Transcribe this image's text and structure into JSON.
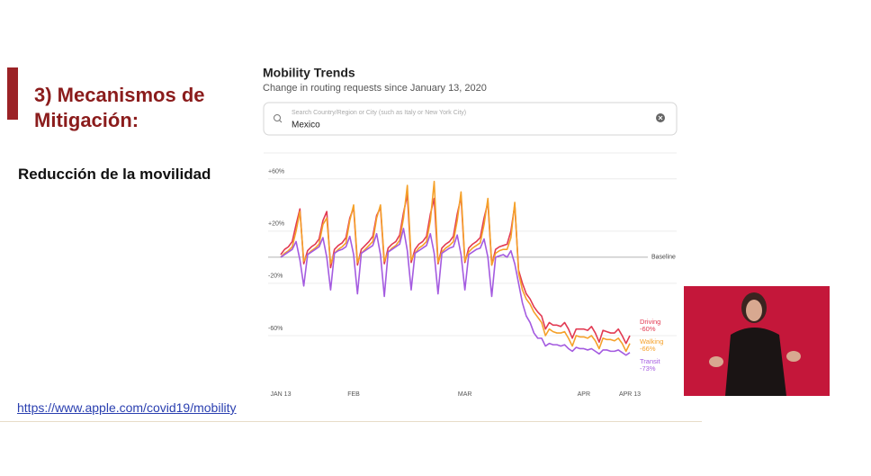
{
  "slide": {
    "heading": "3) Mecanismos de Mitigación:",
    "subheading": "Reducción de la movilidad",
    "link": "https://www.apple.com/covid19/mobility"
  },
  "panel": {
    "title": "Mobility Trends",
    "subtitle": "Change in routing requests since January 13, 2020",
    "search_placeholder": "Search Country/Region or City (such as Italy or New York City)",
    "search_value": "Mexico"
  },
  "chart_data": {
    "type": "line",
    "categories": [
      "JAN 13",
      null,
      null,
      null,
      null,
      null,
      null,
      null,
      null,
      null,
      null,
      null,
      null,
      null,
      null,
      null,
      null,
      null,
      null,
      "FEB",
      null,
      null,
      null,
      null,
      null,
      null,
      null,
      null,
      null,
      null,
      null,
      null,
      null,
      null,
      null,
      null,
      null,
      null,
      null,
      null,
      null,
      null,
      null,
      null,
      null,
      null,
      null,
      null,
      "MAR",
      null,
      null,
      null,
      null,
      null,
      null,
      null,
      null,
      null,
      null,
      null,
      null,
      null,
      null,
      null,
      null,
      null,
      null,
      null,
      null,
      null,
      null,
      null,
      null,
      null,
      null,
      null,
      null,
      null,
      null,
      "APR",
      null,
      null,
      null,
      null,
      null,
      null,
      null,
      null,
      null,
      null,
      null,
      "APR 13"
    ],
    "series": [
      {
        "name": "Driving",
        "color": "#e23a52",
        "values": [
          2,
          6,
          8,
          12,
          25,
          37,
          -5,
          5,
          8,
          10,
          14,
          28,
          35,
          -8,
          6,
          9,
          11,
          15,
          30,
          38,
          -6,
          6,
          9,
          12,
          16,
          32,
          38,
          -5,
          7,
          10,
          12,
          17,
          34,
          48,
          -4,
          6,
          10,
          12,
          16,
          33,
          45,
          -5,
          7,
          10,
          12,
          16,
          33,
          46,
          -4,
          7,
          10,
          12,
          15,
          30,
          42,
          -6,
          6,
          8,
          9,
          10,
          20,
          40,
          -10,
          -20,
          -28,
          -32,
          -38,
          -42,
          -45,
          -55,
          -50,
          -52,
          -52,
          -53,
          -50,
          -55,
          -62,
          -55,
          -55,
          -55,
          -56,
          -53,
          -58,
          -65,
          -56,
          -57,
          -58,
          -58,
          -55,
          -60,
          -66,
          -60
        ],
        "value_labels": [
          null,
          null,
          null,
          null,
          null,
          null,
          null,
          null,
          null,
          null,
          null,
          null,
          null,
          null,
          null,
          null,
          null,
          null,
          null,
          null,
          null,
          null,
          null,
          null,
          null,
          null,
          null,
          null,
          null,
          null,
          null,
          null,
          null,
          null,
          null,
          null,
          null,
          null,
          null,
          null,
          null,
          null,
          null,
          null,
          null,
          null,
          null,
          null,
          null,
          null,
          null,
          null,
          null,
          null,
          null,
          null,
          null,
          null,
          null,
          null,
          null,
          null,
          null,
          null,
          null,
          null,
          null,
          null,
          null,
          null,
          null,
          null,
          null,
          null,
          null,
          null,
          null,
          null,
          null,
          null,
          null,
          null,
          null,
          null,
          null,
          null,
          null,
          null,
          null,
          null,
          null,
          "-60%"
        ]
      },
      {
        "name": "Walking",
        "color": "#f5a12a",
        "values": [
          0,
          3,
          5,
          8,
          20,
          35,
          -3,
          2,
          5,
          7,
          10,
          25,
          30,
          -5,
          3,
          6,
          8,
          11,
          28,
          40,
          -4,
          3,
          6,
          9,
          12,
          30,
          40,
          -3,
          4,
          7,
          9,
          13,
          30,
          55,
          -2,
          3,
          7,
          9,
          12,
          28,
          58,
          -4,
          4,
          7,
          9,
          12,
          28,
          50,
          -3,
          4,
          7,
          9,
          11,
          25,
          45,
          -6,
          3,
          5,
          6,
          6,
          15,
          42,
          -12,
          -25,
          -32,
          -36,
          -42,
          -46,
          -50,
          -60,
          -55,
          -57,
          -58,
          -58,
          -57,
          -62,
          -68,
          -60,
          -61,
          -61,
          -62,
          -60,
          -64,
          -70,
          -62,
          -63,
          -63,
          -64,
          -62,
          -66,
          -72,
          -66
        ],
        "value_labels": [
          null,
          null,
          null,
          null,
          null,
          null,
          null,
          null,
          null,
          null,
          null,
          null,
          null,
          null,
          null,
          null,
          null,
          null,
          null,
          null,
          null,
          null,
          null,
          null,
          null,
          null,
          null,
          null,
          null,
          null,
          null,
          null,
          null,
          null,
          null,
          null,
          null,
          null,
          null,
          null,
          null,
          null,
          null,
          null,
          null,
          null,
          null,
          null,
          null,
          null,
          null,
          null,
          null,
          null,
          null,
          null,
          null,
          null,
          null,
          null,
          null,
          null,
          null,
          null,
          null,
          null,
          null,
          null,
          null,
          null,
          null,
          null,
          null,
          null,
          null,
          null,
          null,
          null,
          null,
          null,
          null,
          null,
          null,
          null,
          null,
          null,
          null,
          null,
          null,
          null,
          null,
          "-66%"
        ]
      },
      {
        "name": "Transit",
        "color": "#a45be0",
        "values": [
          0,
          2,
          4,
          6,
          12,
          -2,
          -22,
          2,
          4,
          6,
          8,
          15,
          0,
          -25,
          3,
          5,
          6,
          8,
          16,
          2,
          -28,
          3,
          5,
          7,
          9,
          18,
          2,
          -30,
          4,
          6,
          8,
          10,
          22,
          5,
          -25,
          3,
          5,
          7,
          9,
          18,
          3,
          -28,
          3,
          5,
          7,
          8,
          17,
          2,
          -25,
          2,
          4,
          6,
          7,
          14,
          0,
          -30,
          0,
          1,
          2,
          0,
          5,
          -5,
          -20,
          -35,
          -45,
          -50,
          -58,
          -62,
          -62,
          -68,
          -66,
          -67,
          -67,
          -68,
          -67,
          -70,
          -72,
          -69,
          -70,
          -70,
          -71,
          -70,
          -72,
          -74,
          -71,
          -71,
          -72,
          -72,
          -71,
          -73,
          -75,
          -73
        ],
        "value_labels": [
          null,
          null,
          null,
          null,
          null,
          null,
          null,
          null,
          null,
          null,
          null,
          null,
          null,
          null,
          null,
          null,
          null,
          null,
          null,
          null,
          null,
          null,
          null,
          null,
          null,
          null,
          null,
          null,
          null,
          null,
          null,
          null,
          null,
          null,
          null,
          null,
          null,
          null,
          null,
          null,
          null,
          null,
          null,
          null,
          null,
          null,
          null,
          null,
          null,
          null,
          null,
          null,
          null,
          null,
          null,
          null,
          null,
          null,
          null,
          null,
          null,
          null,
          null,
          null,
          null,
          null,
          null,
          null,
          null,
          null,
          null,
          null,
          null,
          null,
          null,
          null,
          null,
          null,
          null,
          null,
          null,
          null,
          null,
          null,
          null,
          null,
          null,
          null,
          null,
          null,
          null,
          "-73%"
        ]
      }
    ],
    "ylim": [
      -80,
      75
    ],
    "yticks": [
      {
        "value": 60,
        "label": "+60%"
      },
      {
        "value": 20,
        "label": "+20%"
      },
      {
        "value": -20,
        "label": "-20%"
      },
      {
        "value": -60,
        "label": "-60%"
      }
    ],
    "baseline": {
      "value": 0,
      "label": "Baseline"
    },
    "grid": true
  }
}
